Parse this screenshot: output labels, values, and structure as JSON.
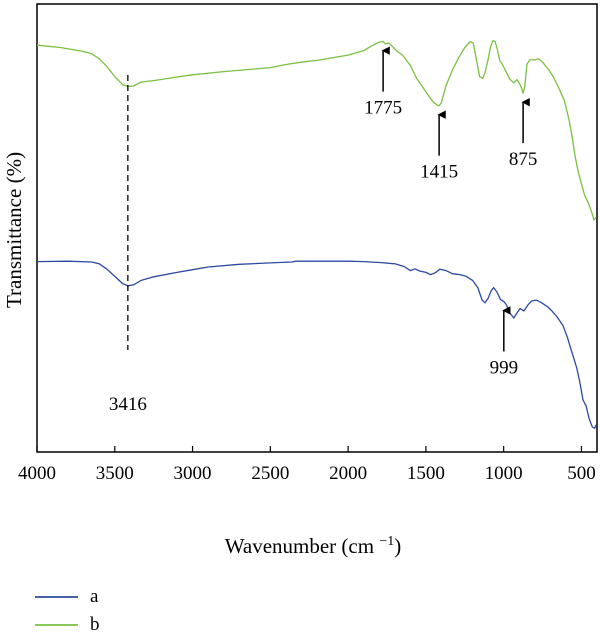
{
  "chart_data": {
    "type": "line",
    "title": "",
    "xlabel": "Wavenumber (cm",
    "xlabel_sup": "−1",
    "xlabel_tail": ")",
    "ylabel": "Transmittance (%)",
    "xlim": [
      4000,
      400
    ],
    "x_reversed": true,
    "ylim": [
      0,
      100
    ],
    "y_ticks_shown": false,
    "grid": false,
    "x_ticks": [
      4000,
      3500,
      3000,
      2500,
      2000,
      1500,
      1000,
      500
    ],
    "x_tick_labels": [
      "4000",
      "3500",
      "3000",
      "2500",
      "2000",
      "1500",
      "1000",
      "500"
    ],
    "legend_position": "bottom-left",
    "series": [
      {
        "name": "a",
        "color": "#2b4aa0",
        "points": [
          [
            4000,
            42.5
          ],
          [
            3800,
            42.6
          ],
          [
            3650,
            42.4
          ],
          [
            3600,
            42.0
          ],
          [
            3550,
            40.8
          ],
          [
            3500,
            39.2
          ],
          [
            3450,
            37.6
          ],
          [
            3416,
            37.1
          ],
          [
            3380,
            37.3
          ],
          [
            3330,
            38.3
          ],
          [
            3250,
            39.1
          ],
          [
            3100,
            40.1
          ],
          [
            3000,
            40.7
          ],
          [
            2900,
            41.3
          ],
          [
            2700,
            41.9
          ],
          [
            2500,
            42.2
          ],
          [
            2360,
            42.4
          ],
          [
            2340,
            42.6
          ],
          [
            2200,
            42.6
          ],
          [
            2000,
            42.6
          ],
          [
            1900,
            42.5
          ],
          [
            1800,
            42.3
          ],
          [
            1700,
            42.0
          ],
          [
            1640,
            41.4
          ],
          [
            1600,
            40.5
          ],
          [
            1570,
            40.9
          ],
          [
            1540,
            40.4
          ],
          [
            1500,
            40.1
          ],
          [
            1470,
            39.6
          ],
          [
            1440,
            40.0
          ],
          [
            1410,
            40.8
          ],
          [
            1370,
            40.5
          ],
          [
            1330,
            39.8
          ],
          [
            1280,
            39.6
          ],
          [
            1240,
            39.2
          ],
          [
            1200,
            38.3
          ],
          [
            1165,
            36.6
          ],
          [
            1140,
            34.0
          ],
          [
            1120,
            33.3
          ],
          [
            1100,
            34.3
          ],
          [
            1080,
            36.0
          ],
          [
            1065,
            36.7
          ],
          [
            1045,
            35.8
          ],
          [
            1020,
            34.0
          ],
          [
            1005,
            33.7
          ],
          [
            999,
            33.6
          ],
          [
            985,
            33.0
          ],
          [
            960,
            31.0
          ],
          [
            935,
            29.9
          ],
          [
            915,
            31.0
          ],
          [
            895,
            32.0
          ],
          [
            870,
            31.5
          ],
          [
            845,
            32.8
          ],
          [
            820,
            33.7
          ],
          [
            790,
            33.9
          ],
          [
            760,
            33.4
          ],
          [
            720,
            32.5
          ],
          [
            690,
            31.5
          ],
          [
            660,
            30.3
          ],
          [
            620,
            28.3
          ],
          [
            590,
            25.6
          ],
          [
            570,
            23.2
          ],
          [
            550,
            21.0
          ],
          [
            530,
            18.7
          ],
          [
            510,
            15.5
          ],
          [
            490,
            11.6
          ],
          [
            470,
            10.3
          ],
          [
            450,
            7.4
          ],
          [
            430,
            5.6
          ],
          [
            415,
            5.3
          ],
          [
            405,
            6.1
          ]
        ]
      },
      {
        "name": "b",
        "color": "#7ac043",
        "points": [
          [
            4000,
            90.8
          ],
          [
            3850,
            90.3
          ],
          [
            3700,
            89.4
          ],
          [
            3650,
            88.9
          ],
          [
            3600,
            87.8
          ],
          [
            3550,
            86.0
          ],
          [
            3500,
            83.8
          ],
          [
            3450,
            82.0
          ],
          [
            3416,
            81.6
          ],
          [
            3380,
            81.7
          ],
          [
            3330,
            82.6
          ],
          [
            3250,
            82.9
          ],
          [
            3100,
            83.7
          ],
          [
            3000,
            84.2
          ],
          [
            2800,
            84.9
          ],
          [
            2600,
            85.5
          ],
          [
            2500,
            85.8
          ],
          [
            2400,
            86.5
          ],
          [
            2300,
            87.0
          ],
          [
            2200,
            87.4
          ],
          [
            2000,
            88.6
          ],
          [
            1900,
            89.6
          ],
          [
            1850,
            90.6
          ],
          [
            1800,
            91.5
          ],
          [
            1775,
            91.6
          ],
          [
            1760,
            91.1
          ],
          [
            1740,
            91.3
          ],
          [
            1720,
            90.7
          ],
          [
            1690,
            89.6
          ],
          [
            1650,
            88.6
          ],
          [
            1600,
            86.3
          ],
          [
            1560,
            83.4
          ],
          [
            1520,
            81.4
          ],
          [
            1480,
            79.4
          ],
          [
            1450,
            78.0
          ],
          [
            1425,
            77.4
          ],
          [
            1415,
            77.3
          ],
          [
            1400,
            78.0
          ],
          [
            1370,
            81.8
          ],
          [
            1330,
            85.2
          ],
          [
            1290,
            88.0
          ],
          [
            1250,
            90.3
          ],
          [
            1215,
            91.6
          ],
          [
            1195,
            91.3
          ],
          [
            1175,
            87.6
          ],
          [
            1155,
            83.8
          ],
          [
            1135,
            83.4
          ],
          [
            1120,
            84.7
          ],
          [
            1100,
            87.6
          ],
          [
            1085,
            90.3
          ],
          [
            1070,
            91.8
          ],
          [
            1055,
            91.6
          ],
          [
            1040,
            89.8
          ],
          [
            1025,
            87.3
          ],
          [
            1010,
            86.6
          ],
          [
            990,
            85.3
          ],
          [
            960,
            83.2
          ],
          [
            935,
            82.4
          ],
          [
            915,
            83.1
          ],
          [
            895,
            82.0
          ],
          [
            885,
            81.2
          ],
          [
            875,
            80.1
          ],
          [
            865,
            81.5
          ],
          [
            850,
            86.6
          ],
          [
            830,
            87.6
          ],
          [
            800,
            87.5
          ],
          [
            775,
            87.8
          ],
          [
            750,
            87.0
          ],
          [
            710,
            85.3
          ],
          [
            680,
            83.7
          ],
          [
            650,
            81.6
          ],
          [
            610,
            78.5
          ],
          [
            580,
            74.2
          ],
          [
            560,
            70.4
          ],
          [
            540,
            65.9
          ],
          [
            520,
            62.4
          ],
          [
            500,
            59.9
          ],
          [
            480,
            57.3
          ],
          [
            455,
            55.6
          ],
          [
            430,
            53.1
          ],
          [
            420,
            51.8
          ],
          [
            405,
            52.4
          ]
        ]
      }
    ],
    "annotations": [
      {
        "text": "1775",
        "x": 1775,
        "series": "b",
        "arrow": true,
        "label_side": "below"
      },
      {
        "text": "1415",
        "x": 1415,
        "series": "b",
        "arrow": true,
        "label_side": "below"
      },
      {
        "text": "875",
        "x": 875,
        "series": "b",
        "arrow": true,
        "label_side": "below"
      },
      {
        "text": "999",
        "x": 999,
        "series": "a",
        "arrow": true,
        "label_side": "below"
      },
      {
        "text": "3416",
        "x": 3416,
        "series": "both",
        "arrow": false,
        "dashed_line": true,
        "label_side": "below"
      }
    ]
  }
}
